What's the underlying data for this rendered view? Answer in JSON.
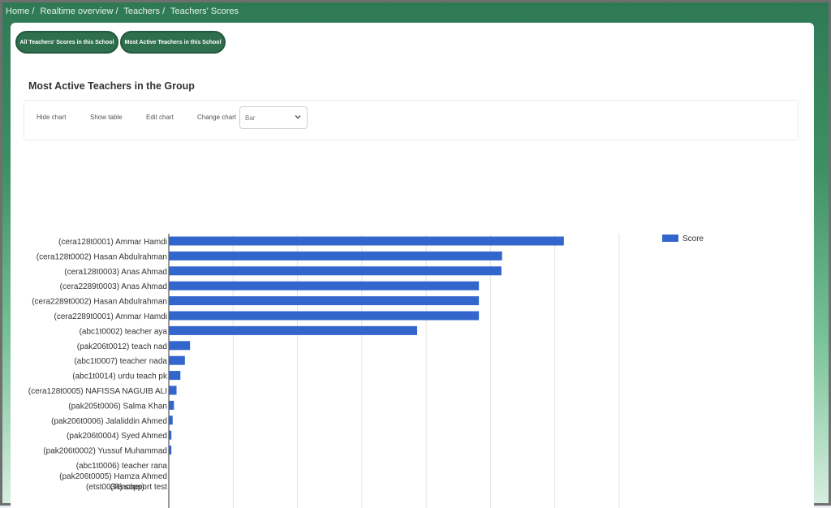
{
  "breadcrumb": [
    "Home /",
    "Realtime overview /",
    "Teachers /",
    "Teachers' Scores"
  ],
  "buttons": {
    "all_scores": "All Teachers' Scores in this School",
    "most_active": "Most Active Teachers in this School"
  },
  "section_title": "Most Active Teachers in the Group",
  "toolbar": {
    "hide_chart": "Hide chart",
    "show_table": "Show table",
    "edit_chart": "Edit chart",
    "change_chart": "Change chart",
    "chart_type_value": "Bar"
  },
  "chart_data": {
    "type": "bar",
    "orientation": "horizontal",
    "categories": [
      "(cera128t0001) Ammar Hamdi",
      "(cera128t0002) Hasan Abdulrahman",
      "(cera128t0003) Anas Ahmad",
      "(cera2289t0003) Anas Ahmad",
      "(cera2289t0002) Hasan Abdulrahman",
      "(cera2289t0001) Ammar Hamdi",
      "(abc1t0002) teacher aya",
      "(pak206t0012) teach nad",
      "(abc1t0007) teacher nada",
      "(abc1t0014) urdu teach pk",
      "(cera128t0005) NAFISSA NAGUIB ALI",
      "(pak205t0006) Salma Khan",
      "(pak206t0006) Jalaliddin Ahmed",
      "(pak206t0004) Syed Ahmed",
      "(pak206t0002) Yussuf Muhammad",
      "(abc1t0006) teacher rana",
      "(pak206t0005) Hamza Ahmed (Teacher)",
      "(etst0034) support test"
    ],
    "series": [
      {
        "name": "Score",
        "color": "#3366cc",
        "values": [
          614,
          518,
          517,
          482,
          482,
          482,
          386,
          33,
          25,
          18,
          12,
          8,
          6,
          4,
          4,
          0,
          0,
          0
        ]
      }
    ],
    "xlim": [
      0,
      700
    ],
    "grid": true,
    "legend_position": "top-right"
  },
  "colors": {
    "accent": "#2f6f4d",
    "bar": "#3366cc"
  }
}
